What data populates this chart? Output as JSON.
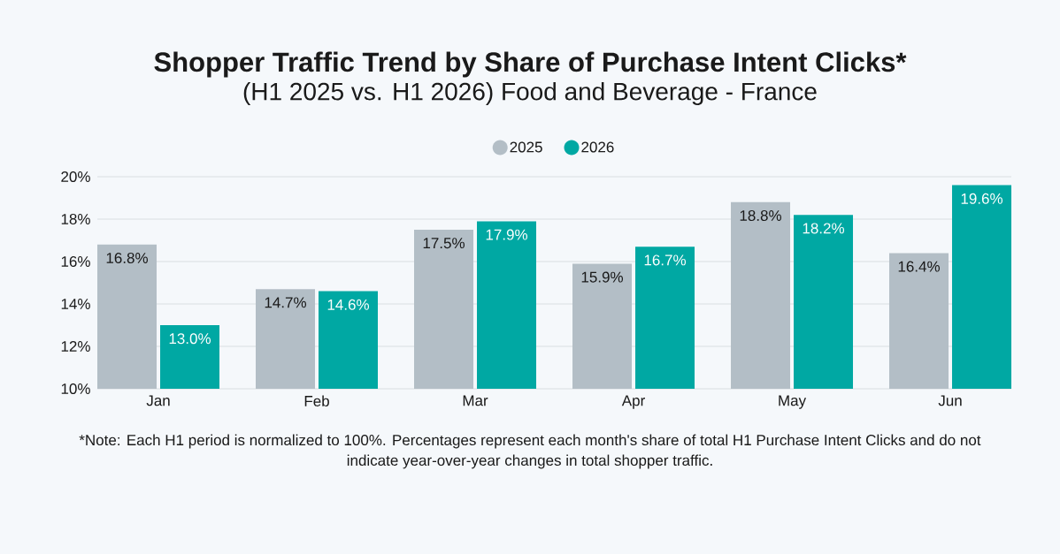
{
  "chart_data": {
    "type": "bar",
    "title": "Shopper Traffic Trend by Share of Purchase Intent Clicks*",
    "subtitle": "(H1 2025 vs. H1 2026) Food and Beverage - France",
    "categories": [
      "Jan",
      "Feb",
      "Mar",
      "Apr",
      "May",
      "Jun"
    ],
    "series": [
      {
        "name": "2025",
        "color": "#b3bec6",
        "values": [
          16.8,
          14.7,
          17.5,
          15.9,
          18.8,
          16.4
        ],
        "value_labels": [
          "16.8%",
          "14.7%",
          "17.5%",
          "15.9%",
          "18.8%",
          "16.4%"
        ]
      },
      {
        "name": "2026",
        "color": "#00a8a3",
        "values": [
          13.0,
          14.6,
          17.9,
          16.7,
          18.2,
          19.6
        ],
        "value_labels": [
          "13.0%",
          "14.6%",
          "17.9%",
          "16.7%",
          "18.2%",
          "19.6%"
        ]
      }
    ],
    "ylim": [
      10,
      20
    ],
    "yticks": [
      {
        "value": 10,
        "label": "10%"
      },
      {
        "value": 12,
        "label": "12%"
      },
      {
        "value": 14,
        "label": "14%"
      },
      {
        "value": 16,
        "label": "16%"
      },
      {
        "value": 18,
        "label": "18%"
      },
      {
        "value": 20,
        "label": "20%"
      }
    ],
    "grid": "y",
    "legend": "top",
    "annotations": [
      "*Note: Each H1 period is normalized to 100%. Percentages represent each month's share of total H1 Purchase Intent Clicks and do not indicate year-over-year changes in total shopper traffic."
    ]
  }
}
